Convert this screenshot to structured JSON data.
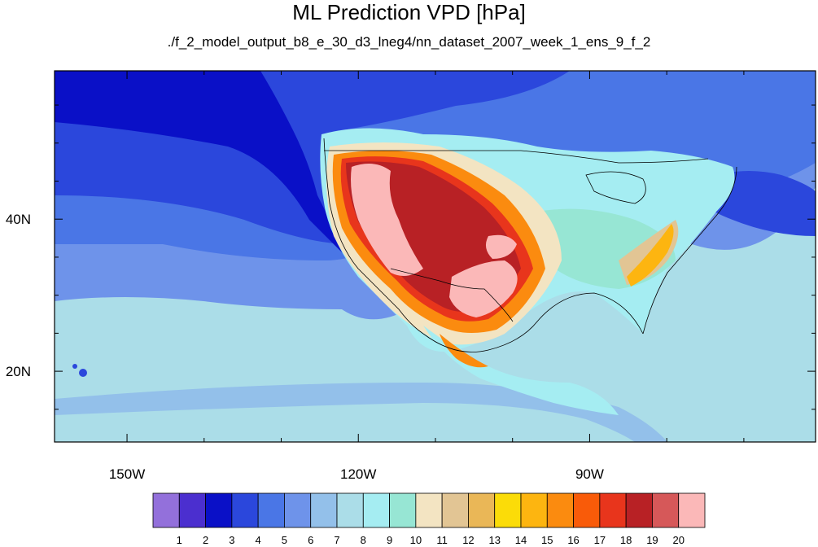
{
  "title": "ML Prediction VPD [hPa]",
  "subtitle": "./f_2_model_output_b8_e_30_d3_lneg4/nn_dataset_2007_week_1_ens_9_f_2",
  "axes": {
    "lon_ticks": [
      {
        "lon": -150,
        "label": "150W"
      },
      {
        "lon": -120,
        "label": "120W"
      },
      {
        "lon": -90,
        "label": "90W"
      }
    ],
    "lat_ticks": [
      {
        "lat": 40,
        "label": "40N"
      },
      {
        "lat": 20,
        "label": "20N"
      }
    ],
    "lon_range": [
      -159.4,
      -60.7
    ],
    "lat_range": [
      10.7,
      59.5
    ]
  },
  "colorbar": {
    "labels": [
      "1",
      "2",
      "3",
      "4",
      "5",
      "6",
      "7",
      "8",
      "9",
      "10",
      "11",
      "12",
      "13",
      "14",
      "15",
      "16",
      "17",
      "18",
      "19",
      "20"
    ],
    "colors": [
      "#9370db",
      "#4b2fcf",
      "#0a10c7",
      "#2b47dc",
      "#4a76e6",
      "#6e93ea",
      "#93c0ea",
      "#abdde8",
      "#a5edf2",
      "#97e6d4",
      "#f3e4c2",
      "#e2c594",
      "#eab757",
      "#fbdc08",
      "#fdb510",
      "#fb8b0f",
      "#f95b09",
      "#e8351c",
      "#b82125",
      "#d65859",
      "#fbb8b8"
    ]
  },
  "map_colors": {
    "ocean_deep": "#0a10c7",
    "ocean_mid": "#2b47dc",
    "ocean_light": "#4a76e6",
    "ocean_pale": "#6e93ea",
    "tropics": "#abdde8",
    "land_base": "#a5edf2",
    "land_green": "#97e6d4",
    "arid_low": "#f3e4c2",
    "arid_mid": "#e2c594",
    "hot_orange": "#fb8b0f",
    "hot_red": "#e8351c",
    "hot_dark": "#b82125",
    "hot_peak": "#fbb8b8",
    "outline": "#000000"
  }
}
